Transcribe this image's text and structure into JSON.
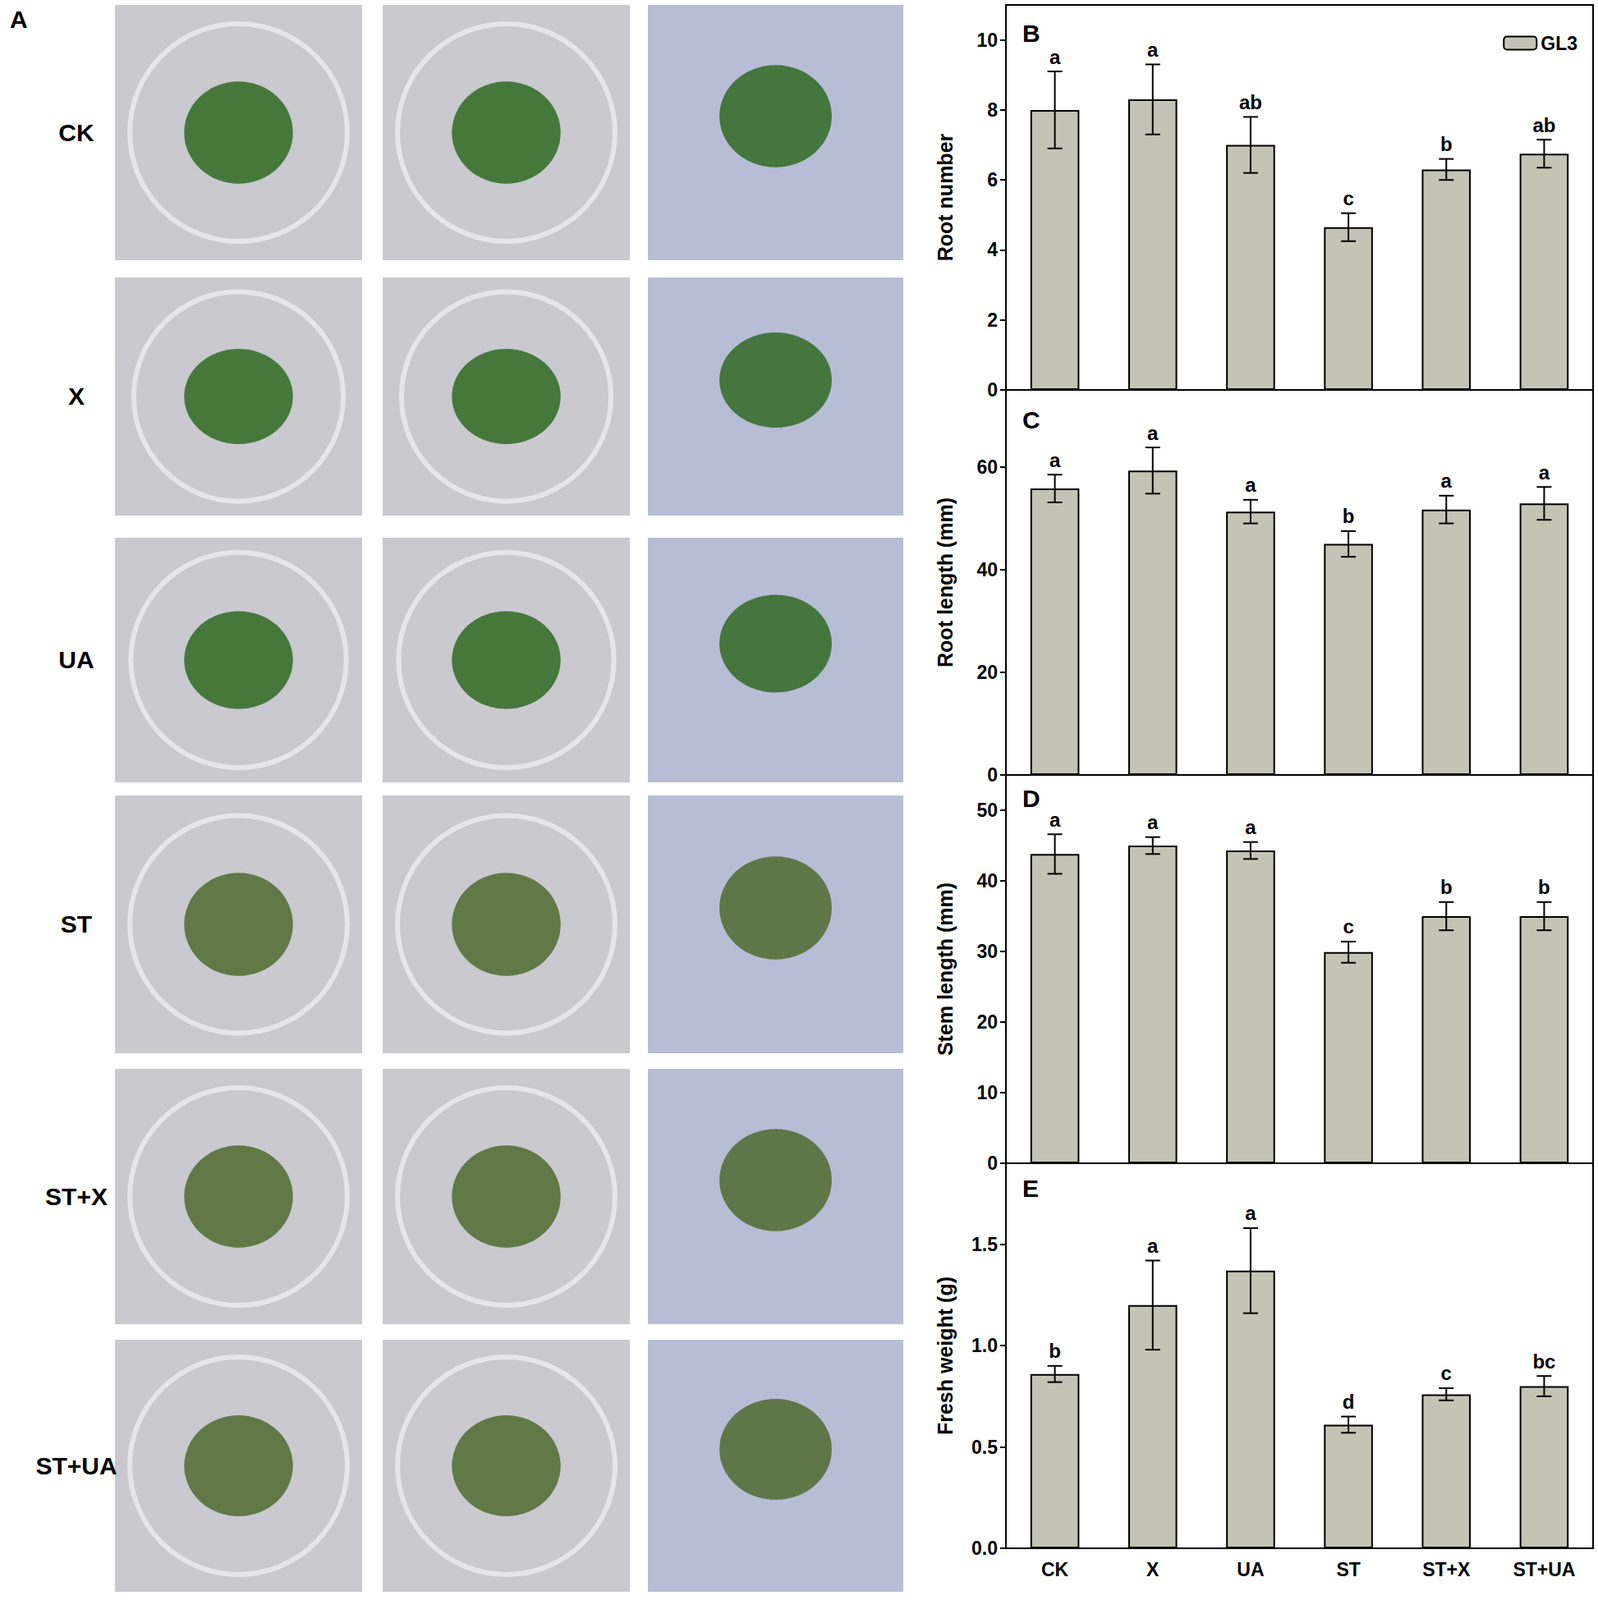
{
  "panel_a": {
    "label": "A",
    "rows": [
      "CK",
      "X",
      "UA",
      "ST",
      "ST+X",
      "ST+UA"
    ]
  },
  "chart_data": [
    {
      "type": "bar",
      "title": "B",
      "y_label": "Root number",
      "categories": [
        "CK",
        "X",
        "UA",
        "ST",
        "ST+X",
        "ST+UA"
      ],
      "series": [
        {
          "name": "GL3",
          "color": "#c3c4b3",
          "values": [
            8.0,
            8.3,
            7.0,
            4.65,
            6.3,
            6.75
          ],
          "errors": [
            1.1,
            1.0,
            0.8,
            0.4,
            0.3,
            0.4
          ],
          "annotations": [
            "a",
            "a",
            "ab",
            "c",
            "b",
            "ab"
          ]
        }
      ],
      "ylim": [
        0,
        11
      ],
      "yticks": [
        0,
        2,
        4,
        6,
        8,
        10
      ],
      "legend": "upper right",
      "tick_labels": "y"
    },
    {
      "type": "bar",
      "title": "C",
      "y_label": "Root length (mm)",
      "categories": [
        "CK",
        "X",
        "UA",
        "ST",
        "ST+X",
        "ST+UA"
      ],
      "series": [
        {
          "color": "#c3c4b3",
          "values": [
            55.8,
            59.3,
            51.3,
            45.0,
            51.7,
            52.9
          ],
          "errors": [
            2.7,
            4.5,
            2.3,
            2.5,
            2.7,
            3.2
          ],
          "annotations": [
            "a",
            "a",
            "a",
            "b",
            "a",
            "a"
          ]
        }
      ],
      "ylim": [
        0,
        75
      ],
      "yticks": [
        0,
        20,
        40,
        60
      ],
      "tick_labels": "y"
    },
    {
      "type": "bar",
      "title": "D",
      "y_label": "Stem length (mm)",
      "categories": [
        "CK",
        "X",
        "UA",
        "ST",
        "ST+X",
        "ST+UA"
      ],
      "series": [
        {
          "color": "#c3c4b3",
          "values": [
            43.8,
            45.0,
            44.3,
            29.9,
            35.0,
            35.0
          ],
          "errors": [
            2.8,
            1.2,
            1.2,
            1.5,
            2.0,
            2.0
          ],
          "annotations": [
            "a",
            "a",
            "a",
            "c",
            "b",
            "b"
          ]
        }
      ],
      "ylim": [
        0,
        55
      ],
      "yticks": [
        0,
        10,
        20,
        30,
        40,
        50
      ],
      "tick_labels": "y"
    },
    {
      "type": "bar",
      "title": "E",
      "y_label": "Fresh weight (g)",
      "categories": [
        "CK",
        "X",
        "UA",
        "ST",
        "ST+X",
        "ST+UA"
      ],
      "series": [
        {
          "color": "#c3c4b3",
          "values": [
            0.86,
            1.2,
            1.37,
            0.61,
            0.76,
            0.8
          ],
          "errors": [
            0.04,
            0.22,
            0.21,
            0.04,
            0.03,
            0.05
          ],
          "annotations": [
            "b",
            "a",
            "a",
            "d",
            "c",
            "bc"
          ]
        }
      ],
      "ylim": [
        0,
        1.9
      ],
      "yticks": [
        {
          "value": 0,
          "label": "0.0"
        },
        0.5,
        {
          "value": 1.0,
          "label": "1.0"
        },
        1.5
      ]
    }
  ]
}
